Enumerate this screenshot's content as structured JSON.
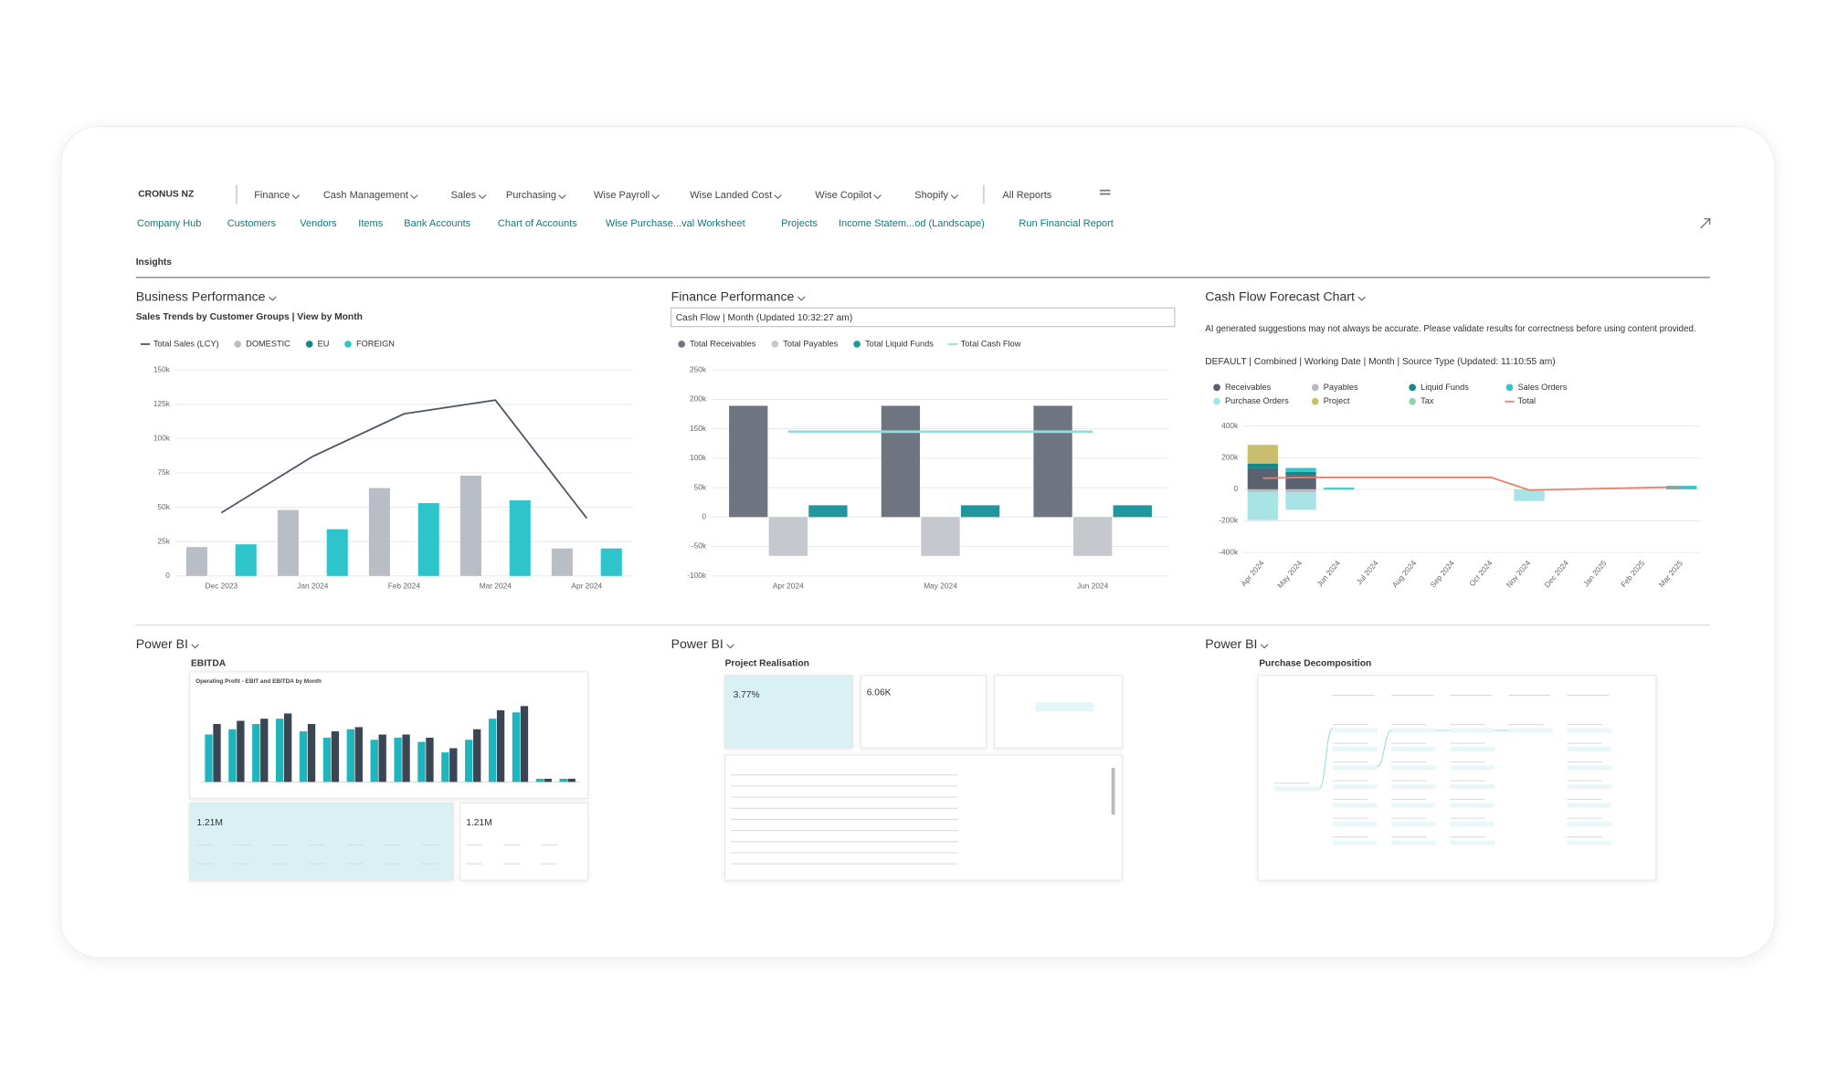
{
  "header": {
    "company": "CRONUS NZ",
    "menus": [
      "Finance",
      "Cash Management",
      "Sales",
      "Purchasing",
      "Wise Payroll",
      "Wise Landed Cost",
      "Wise Copilot",
      "Shopify"
    ],
    "all_reports": "All Reports"
  },
  "links": [
    "Company Hub",
    "Customers",
    "Vendors",
    "Items",
    "Bank Accounts",
    "Chart of Accounts",
    "Wise Purchase...val Worksheet",
    "Projects",
    "Income Statem...od (Landscape)",
    "Run Financial Report"
  ],
  "section": "Insights",
  "panels": [
    {
      "title": "Business Performance",
      "subtitle": "Sales Trends by Customer Groups | View by Month",
      "chart_data": {
        "type": "bar",
        "categories": [
          "Dec 2023",
          "Jan 2024",
          "Feb 2024",
          "Mar 2024",
          "Apr 2024"
        ],
        "series": [
          {
            "name": "Total Sales (LCY)",
            "type": "line",
            "color": "#4b5563",
            "values": [
              46000,
              87000,
              118000,
              128000,
              42000
            ]
          },
          {
            "name": "DOMESTIC",
            "color": "#b9bdc5",
            "values": [
              21000,
              48000,
              64000,
              73000,
              20000
            ]
          },
          {
            "name": "EU",
            "color": "#13888d",
            "values": [
              null,
              null,
              null,
              null,
              null
            ]
          },
          {
            "name": "FOREIGN",
            "color": "#2ec4cc",
            "values": [
              23000,
              34000,
              53000,
              55000,
              20000
            ]
          }
        ],
        "ylim": [
          0,
          150000
        ],
        "yticks": [
          0,
          {
            "value": 25000,
            "label": "25k"
          },
          {
            "value": 50000,
            "label": "50k"
          },
          {
            "value": 75000,
            "label": "75k"
          },
          {
            "value": 100000,
            "label": "100k"
          },
          {
            "value": 125000,
            "label": "125k"
          },
          {
            "value": 150000,
            "label": "150k"
          }
        ],
        "grid": true
      }
    },
    {
      "title": "Finance Performance",
      "subtitle": "Cash Flow | Month (Updated 10:32:27 am)",
      "chart_data": {
        "type": "bar",
        "categories": [
          "Apr 2024",
          "May 2024",
          "Jun 2024"
        ],
        "series": [
          {
            "name": "Total Receivables",
            "color": "#6e7580",
            "values": [
              189000,
              189000,
              189000
            ]
          },
          {
            "name": "Total Payables",
            "color": "#c5c8cd",
            "values": [
              -66000,
              -66000,
              -66000
            ]
          },
          {
            "name": "Total Liquid Funds",
            "color": "#1f979c",
            "values": [
              20000,
              20000,
              20000
            ]
          },
          {
            "name": "Total Cash Flow",
            "type": "line",
            "color": "#8fdde0",
            "values": [
              145000,
              145000,
              145000
            ]
          }
        ],
        "ylim": [
          -100000,
          250000
        ],
        "yticks": [
          {
            "value": -100000,
            "label": "-100k"
          },
          {
            "value": -50000,
            "label": "-50k"
          },
          0,
          {
            "value": 50000,
            "label": "50k"
          },
          {
            "value": 100000,
            "label": "100k"
          },
          {
            "value": 150000,
            "label": "150k"
          },
          {
            "value": 200000,
            "label": "200k"
          },
          {
            "value": 250000,
            "label": "250k"
          }
        ],
        "grid": true
      }
    },
    {
      "title": "Cash Flow Forecast Chart",
      "note": "AI generated suggestions may not always be accurate. Please validate results for correctness before using content provided.",
      "subtitle": "DEFAULT | Combined | Working Date | Month | Source Type (Updated: 11:10:55 am)",
      "chart_data": {
        "type": "bar",
        "stacked": true,
        "categories": [
          "Apr 2024",
          "May 2024",
          "Jun 2024",
          "Jul 2024",
          "Aug 2024",
          "Sep 2024",
          "Oct 2024",
          "Nov 2024",
          "Dec 2024",
          "Jan 2025",
          "Feb 2025",
          "Mar 2025"
        ],
        "series": [
          {
            "name": "Receivables",
            "color": "#5a6270",
            "values": [
              133000,
              90000,
              null,
              null,
              null,
              null,
              null,
              null,
              null,
              null,
              null,
              null
            ]
          },
          {
            "name": "Payables",
            "color": "#b7bcc4",
            "values": [
              -15000,
              -20000,
              null,
              null,
              null,
              null,
              null,
              null,
              null,
              null,
              null,
              null
            ]
          },
          {
            "name": "Liquid Funds",
            "color": "#16868b",
            "values": [
              30000,
              20000,
              null,
              null,
              null,
              null,
              null,
              null,
              null,
              null,
              null,
              null
            ]
          },
          {
            "name": "Sales Orders",
            "color": "#2fc6cc",
            "values": [
              null,
              25000,
              10000,
              null,
              null,
              null,
              null,
              null,
              null,
              null,
              null,
              22000
            ]
          },
          {
            "name": "Purchase Orders",
            "color": "#a8e3e6",
            "values": [
              -180000,
              -110000,
              -5000,
              null,
              null,
              null,
              null,
              -74000,
              null,
              null,
              null,
              null
            ]
          },
          {
            "name": "Project",
            "color": "#c9be6e",
            "values": [
              118000,
              null,
              null,
              null,
              null,
              null,
              null,
              null,
              null,
              null,
              null,
              null
            ]
          },
          {
            "name": "Tax",
            "color": "#8fd4a8",
            "values": [
              null,
              null,
              null,
              null,
              null,
              null,
              null,
              null,
              null,
              null,
              null,
              null
            ]
          },
          {
            "name": "Total",
            "type": "line",
            "color": "#e8806e",
            "values": [
              70000,
              75000,
              75000,
              75000,
              75000,
              75000,
              75000,
              -5000,
              0,
              5000,
              10000,
              15000
            ]
          }
        ],
        "ylim": [
          -400000,
          400000
        ],
        "yticks": [
          {
            "value": -400000,
            "label": "-400k"
          },
          {
            "value": -200000,
            "label": "-200k"
          },
          0,
          {
            "value": 200000,
            "label": "200k"
          },
          {
            "value": 400000,
            "label": "400k"
          }
        ],
        "grid": true
      }
    }
  ],
  "powerbi": [
    {
      "title": "Power BI",
      "report": "EBITDA",
      "chart_title": "Operating Profit - EBIT and EBITDA by Month",
      "kpis": [
        "1.21M",
        "1.21M"
      ],
      "chart_data": {
        "type": "bar",
        "series": [
          {
            "color": "#1fb5bd",
            "values": [
              45,
              50,
              55,
              60,
              48,
              42,
              50,
              40,
              42,
              38,
              28,
              40,
              60,
              66,
              3,
              3
            ]
          },
          {
            "color": "#3b4654",
            "values": [
              55,
              58,
              60,
              65,
              55,
              48,
              52,
              45,
              45,
              42,
              32,
              50,
              68,
              72,
              3,
              3
            ]
          }
        ],
        "ylim": [
          0,
          80
        ]
      }
    },
    {
      "title": "Power BI",
      "report": "Project Realisation",
      "kpis": [
        "3.77%",
        "6.06K"
      ]
    },
    {
      "title": "Power BI",
      "report": "Purchase Decomposition"
    }
  ]
}
